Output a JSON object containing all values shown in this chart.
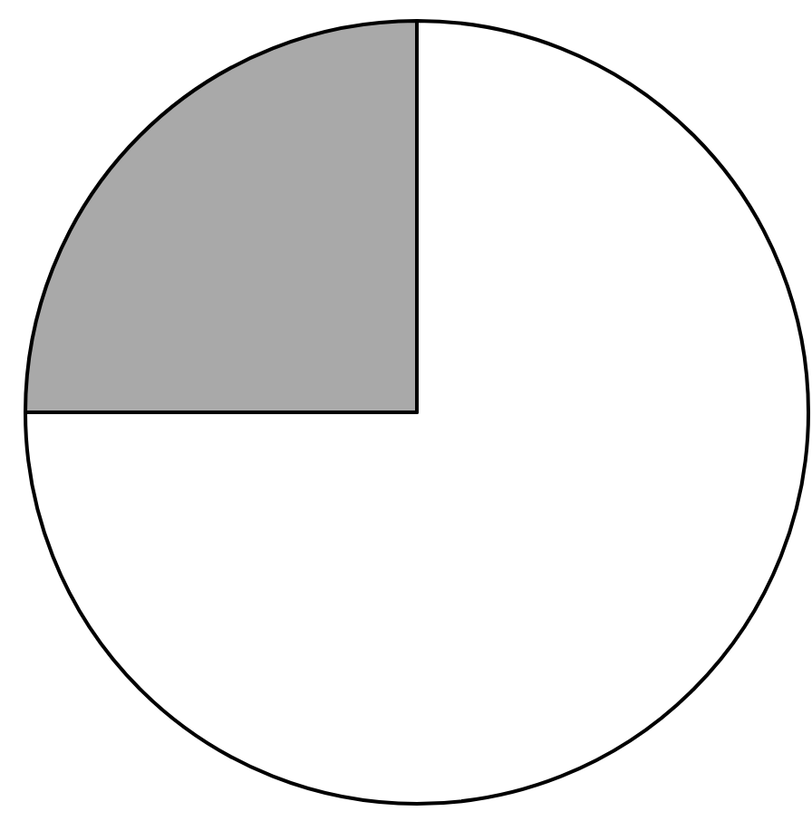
{
  "chart_data": {
    "type": "pie",
    "categories": [
      null,
      null
    ],
    "values": [
      75,
      25
    ],
    "colors": [
      "#ffffff",
      "#a9a9a9"
    ]
  }
}
